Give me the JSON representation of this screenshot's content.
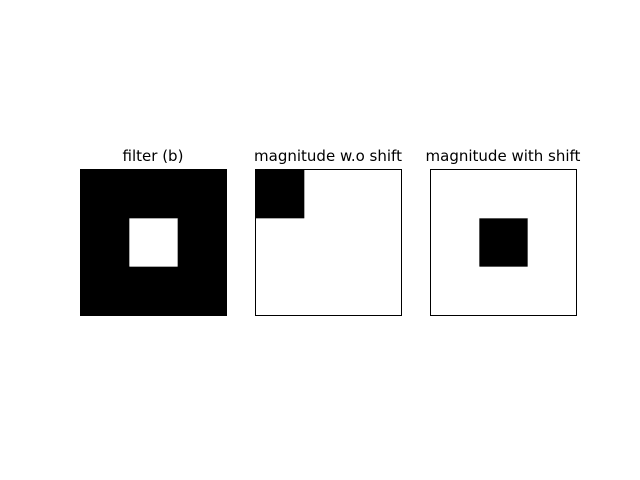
{
  "figure": {
    "panels": [
      {
        "title": "filter (b)",
        "grid": [
          [
            1,
            1,
            1
          ],
          [
            1,
            0,
            1
          ],
          [
            1,
            1,
            1
          ]
        ]
      },
      {
        "title": "magnitude w.o shift",
        "grid": [
          [
            1,
            0,
            0
          ],
          [
            0,
            0,
            0
          ],
          [
            0,
            0,
            0
          ]
        ]
      },
      {
        "title": "magnitude with shift",
        "grid": [
          [
            0,
            0,
            0
          ],
          [
            0,
            1,
            0
          ],
          [
            0,
            0,
            0
          ]
        ]
      }
    ],
    "colors": {
      "on": "#000000",
      "off": "#ffffff"
    }
  }
}
